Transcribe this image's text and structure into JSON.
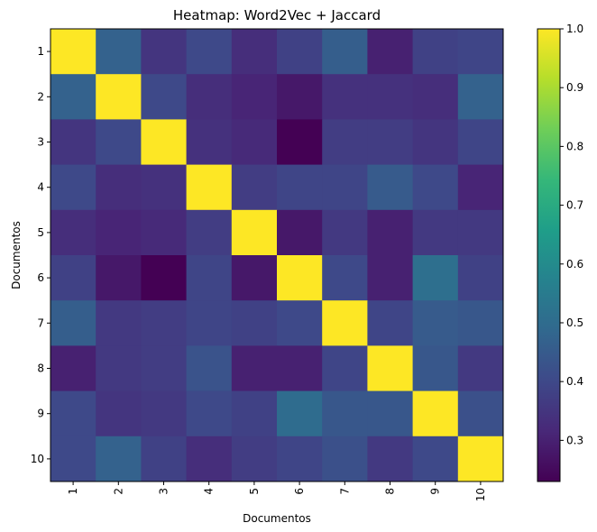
{
  "chart_data": {
    "type": "heatmap",
    "title": "Heatmap: Word2Vec + Jaccard",
    "xlabel": "Documentos",
    "ylabel": "Documentos",
    "x_categories": [
      "1",
      "2",
      "3",
      "4",
      "5",
      "6",
      "7",
      "8",
      "9",
      "10"
    ],
    "y_categories": [
      "1",
      "2",
      "3",
      "4",
      "5",
      "6",
      "7",
      "8",
      "9",
      "10"
    ],
    "values": [
      [
        1.0,
        0.47,
        0.35,
        0.4,
        0.33,
        0.38,
        0.46,
        0.3,
        0.38,
        0.39
      ],
      [
        0.47,
        1.0,
        0.4,
        0.33,
        0.31,
        0.28,
        0.34,
        0.34,
        0.33,
        0.47
      ],
      [
        0.35,
        0.4,
        1.0,
        0.34,
        0.32,
        0.23,
        0.37,
        0.37,
        0.35,
        0.39
      ],
      [
        0.4,
        0.33,
        0.34,
        1.0,
        0.37,
        0.39,
        0.39,
        0.45,
        0.4,
        0.31
      ],
      [
        0.33,
        0.31,
        0.32,
        0.37,
        1.0,
        0.28,
        0.36,
        0.3,
        0.36,
        0.36
      ],
      [
        0.38,
        0.28,
        0.23,
        0.39,
        0.28,
        1.0,
        0.4,
        0.3,
        0.51,
        0.38
      ],
      [
        0.46,
        0.36,
        0.37,
        0.39,
        0.38,
        0.4,
        1.0,
        0.39,
        0.45,
        0.44
      ],
      [
        0.3,
        0.36,
        0.37,
        0.43,
        0.3,
        0.3,
        0.39,
        1.0,
        0.44,
        0.36
      ],
      [
        0.4,
        0.35,
        0.36,
        0.4,
        0.38,
        0.5,
        0.44,
        0.44,
        1.0,
        0.42
      ],
      [
        0.4,
        0.47,
        0.38,
        0.33,
        0.37,
        0.39,
        0.42,
        0.36,
        0.4,
        1.0
      ]
    ],
    "colorbar": {
      "colormap": "viridis",
      "min": 0.23,
      "max": 1.0,
      "ticks": [
        "0.3",
        "0.4",
        "0.5",
        "0.6",
        "0.7",
        "0.8",
        "0.9",
        "1.0"
      ],
      "tick_values": [
        0.3,
        0.4,
        0.5,
        0.6,
        0.7,
        0.8,
        0.9,
        1.0
      ]
    },
    "grid": false,
    "x_tick_rotation": "vertical"
  }
}
